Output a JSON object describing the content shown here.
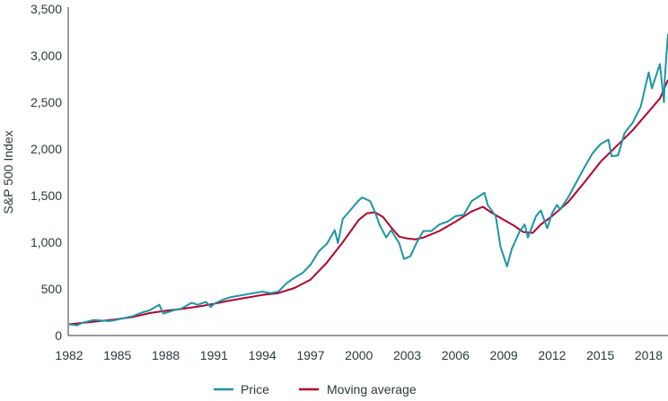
{
  "chart_data": {
    "type": "line",
    "title": "",
    "xlabel": "",
    "ylabel": "S&P 500 Index",
    "xlim": [
      1982,
      2019.2
    ],
    "ylim": [
      0,
      3500
    ],
    "grid": false,
    "legend_placement": "bottom-center",
    "x_ticks": [
      1982,
      1985,
      1988,
      1991,
      1994,
      1997,
      2000,
      2003,
      2006,
      2009,
      2012,
      2015,
      2018
    ],
    "x_tick_labels": [
      "1982",
      "1985",
      "1988",
      "1991",
      "1994",
      "1997",
      "2000",
      "2003",
      "2006",
      "2009",
      "2012",
      "2015",
      "2018"
    ],
    "y_ticks": [
      0,
      500,
      1000,
      1500,
      2000,
      2500,
      3000,
      3500
    ],
    "y_tick_labels": [
      "0",
      "500",
      "1,000",
      "1,500",
      "2,000",
      "2,500",
      "3,000",
      "3,500"
    ],
    "series": [
      {
        "name": "Price",
        "color": "#1b95a7",
        "x": [
          1982.0,
          1982.5,
          1982.8,
          1983.5,
          1984.5,
          1985.0,
          1985.5,
          1986.0,
          1986.5,
          1987.0,
          1987.6,
          1987.85,
          1988.5,
          1989.0,
          1989.6,
          1990.0,
          1990.5,
          1990.8,
          1991.0,
          1991.5,
          1992.0,
          1993.0,
          1994.0,
          1994.5,
          1995.0,
          1995.5,
          1996.0,
          1996.5,
          1997.0,
          1997.5,
          1997.8,
          1998.0,
          1998.5,
          1998.7,
          1999.0,
          1999.5,
          2000.0,
          2000.2,
          2000.7,
          2001.0,
          2001.3,
          2001.7,
          2002.0,
          2002.5,
          2002.8,
          2003.2,
          2003.6,
          2004.0,
          2004.5,
          2005.0,
          2005.5,
          2006.0,
          2006.5,
          2007.0,
          2007.8,
          2008.0,
          2008.5,
          2008.8,
          2009.2,
          2009.5,
          2010.0,
          2010.3,
          2010.5,
          2011.0,
          2011.3,
          2011.7,
          2012.0,
          2012.3,
          2012.5,
          2013.0,
          2013.5,
          2014.0,
          2014.5,
          2015.0,
          2015.5,
          2015.7,
          2016.1,
          2016.5,
          2017.0,
          2017.5,
          2018.0,
          2018.2,
          2018.7,
          2018.95,
          2019.0,
          2019.1,
          2019.2
        ],
        "y": [
          120,
          110,
          135,
          165,
          155,
          170,
          190,
          210,
          245,
          270,
          330,
          235,
          270,
          290,
          350,
          330,
          360,
          305,
          340,
          380,
          410,
          440,
          470,
          455,
          470,
          560,
          620,
          670,
          760,
          900,
          950,
          980,
          1130,
          990,
          1250,
          1350,
          1450,
          1480,
          1440,
          1320,
          1180,
          1050,
          1130,
          990,
          820,
          850,
          1000,
          1120,
          1120,
          1190,
          1220,
          1280,
          1290,
          1440,
          1530,
          1400,
          1280,
          950,
          740,
          930,
          1120,
          1190,
          1050,
          1280,
          1340,
          1150,
          1310,
          1400,
          1350,
          1480,
          1640,
          1800,
          1950,
          2050,
          2100,
          1920,
          1930,
          2170,
          2280,
          2450,
          2820,
          2650,
          2910,
          2500,
          2750,
          3000,
          3230
        ]
      },
      {
        "name": "Moving average",
        "color": "#b5002b",
        "x": [
          1982,
          1985,
          1986,
          1987,
          1988,
          1989,
          1990,
          1991,
          1992,
          1993,
          1994,
          1995,
          1996,
          1997,
          1998,
          1999,
          2000,
          2000.5,
          2001,
          2001.5,
          2002,
          2002.5,
          2003,
          2003.5,
          2004,
          2005,
          2006,
          2007,
          2007.7,
          2008.3,
          2009,
          2009.7,
          2010.2,
          2010.8,
          2011.3,
          2012,
          2013,
          2014,
          2015,
          2016,
          2017,
          2018,
          2018.7,
          2019.2
        ],
        "y": [
          120,
          175,
          200,
          240,
          265,
          285,
          310,
          340,
          375,
          405,
          435,
          455,
          510,
          600,
          780,
          1000,
          1240,
          1310,
          1320,
          1270,
          1160,
          1060,
          1040,
          1030,
          1050,
          1120,
          1220,
          1330,
          1380,
          1310,
          1240,
          1170,
          1110,
          1100,
          1190,
          1280,
          1430,
          1640,
          1860,
          2030,
          2200,
          2400,
          2540,
          2740
        ]
      }
    ]
  }
}
